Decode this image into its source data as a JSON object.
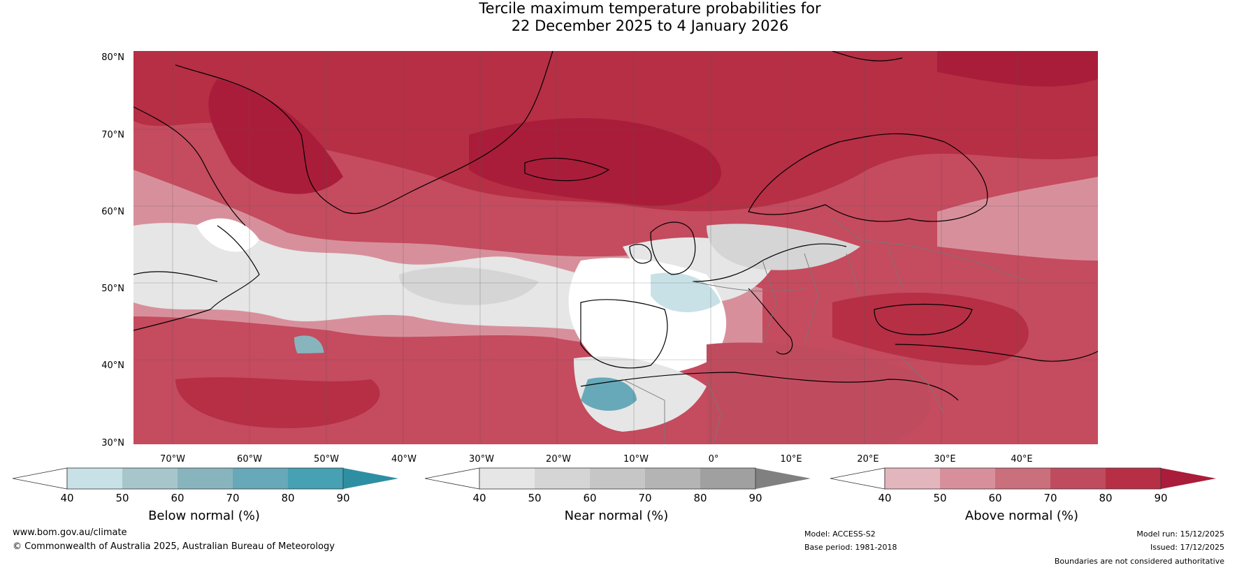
{
  "title": {
    "line1": "Tercile maximum temperature probabilities for",
    "line2": "22 December 2025 to 4 January 2026"
  },
  "map": {
    "lat_labels": [
      "80°N",
      "70°N",
      "60°N",
      "50°N",
      "40°N",
      "30°N"
    ],
    "lon_labels": [
      "70°W",
      "60°W",
      "50°W",
      "40°W",
      "30°W",
      "20°W",
      "10°W",
      "0°",
      "10°E",
      "20°E",
      "30°E",
      "40°E"
    ]
  },
  "colorbars": [
    {
      "title": "Below normal (%)",
      "ticks": [
        "40",
        "50",
        "60",
        "70",
        "80",
        "90"
      ],
      "colors": [
        "#ffffff",
        "#c8e1e7",
        "#a7c6cc",
        "#88b5bd",
        "#67a9b8",
        "#45a1b3",
        "#2e8fa3"
      ]
    },
    {
      "title": "Near normal (%)",
      "ticks": [
        "40",
        "50",
        "60",
        "70",
        "80",
        "90"
      ],
      "colors": [
        "#ffffff",
        "#e6e6e6",
        "#d5d5d5",
        "#c6c6c6",
        "#b4b4b4",
        "#a0a0a0",
        "#808080"
      ]
    },
    {
      "title": "Above normal (%)",
      "ticks": [
        "40",
        "50",
        "60",
        "70",
        "80",
        "90"
      ],
      "colors": [
        "#ffffff",
        "#e3b5bd",
        "#d7909b",
        "#ca6f7c",
        "#bf4c5e",
        "#b62f45",
        "#a91d3a"
      ]
    }
  ],
  "footer": {
    "website": "www.bom.gov.au/climate",
    "copyright": "© Commonwealth of Australia 2025, Australian Bureau of Meteorology",
    "model": "Model: ACCESS-S2",
    "base_period": "Base period: 1981-2018",
    "model_run": "Model run: 15/12/2025",
    "issued": "Issued: 17/12/2025",
    "disclaimer": "Boundaries are not considered authoritative"
  }
}
